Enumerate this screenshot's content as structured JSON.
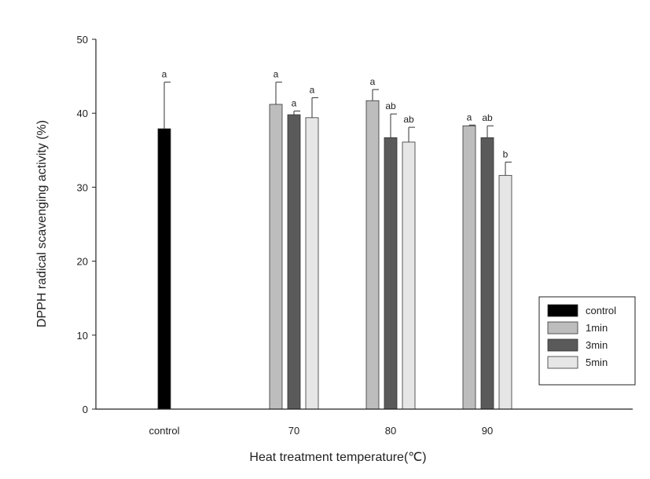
{
  "chart_data": {
    "type": "bar",
    "title": "",
    "xlabel": "Heat treatment temperature(℃)",
    "ylabel": "DPPH radical scavenging activity (%)",
    "ylim": [
      0,
      50
    ],
    "yticks": [
      0,
      10,
      20,
      30,
      40,
      50
    ],
    "grid": false,
    "legend_position": "bottom-right",
    "groups": [
      {
        "category": "control",
        "bars": [
          {
            "series": "control",
            "value": 37.9,
            "error": 6.3,
            "label": "a"
          }
        ]
      },
      {
        "category": "70",
        "bars": [
          {
            "series": "1min",
            "value": 41.2,
            "error": 3.0,
            "label": "a"
          },
          {
            "series": "3min",
            "value": 39.8,
            "error": 0.5,
            "label": "a"
          },
          {
            "series": "5min",
            "value": 39.4,
            "error": 2.7,
            "label": "a"
          }
        ]
      },
      {
        "category": "80",
        "bars": [
          {
            "series": "1min",
            "value": 41.7,
            "error": 1.5,
            "label": "a"
          },
          {
            "series": "3min",
            "value": 36.7,
            "error": 3.2,
            "label": "ab"
          },
          {
            "series": "5min",
            "value": 36.1,
            "error": 2.0,
            "label": "ab"
          }
        ]
      },
      {
        "category": "90",
        "bars": [
          {
            "series": "1min",
            "value": 38.3,
            "error": 0.1,
            "label": "a"
          },
          {
            "series": "3min",
            "value": 36.7,
            "error": 1.6,
            "label": "ab"
          },
          {
            "series": "5min",
            "value": 31.6,
            "error": 1.8,
            "label": "b"
          }
        ]
      }
    ],
    "series": [
      {
        "name": "control",
        "color": "#000000"
      },
      {
        "name": "1min",
        "color": "#bdbdbd"
      },
      {
        "name": "3min",
        "color": "#5a5a5a"
      },
      {
        "name": "5min",
        "color": "#e6e6e6"
      }
    ]
  }
}
